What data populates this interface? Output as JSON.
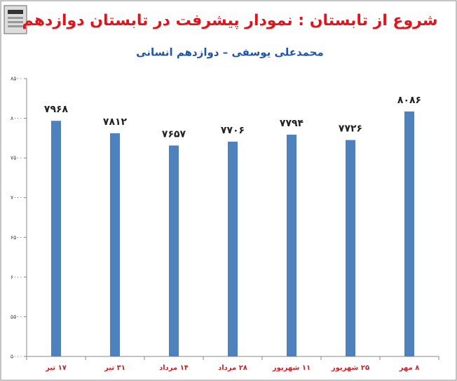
{
  "chart_data": {
    "type": "bar",
    "title": "شروع از تابستان : نمودار پیشرفت در تابستان دوازدهم",
    "subtitle": "محمدعلی یوسفی – دوازدهم انسانی",
    "categories": [
      "۱۷ تیر",
      "۳۱ تیر",
      "۱۴ مرداد",
      "۲۸ مرداد",
      "۱۱ شهریور",
      "۲۵ شهریور",
      "۸ مهر"
    ],
    "values": [
      7968,
      7812,
      7657,
      7706,
      7794,
      7726,
      8086
    ],
    "value_labels": [
      "۷۹۶۸",
      "۷۸۱۲",
      "۷۶۵۷",
      "۷۷۰۶",
      "۷۷۹۴",
      "۷۷۲۶",
      "۸۰۸۶"
    ],
    "color": "#4f81bd",
    "ylim": [
      5000,
      8500
    ],
    "yticks": [
      {
        "value": 5000,
        "label": "۵۰۰۰"
      },
      {
        "value": 5500,
        "label": "۵۵۰۰"
      },
      {
        "value": 6000,
        "label": "۶۰۰۰"
      },
      {
        "value": 6500,
        "label": "۶۵۰۰"
      },
      {
        "value": 7000,
        "label": "۷۰۰۰"
      },
      {
        "value": 7500,
        "label": "۷۵۰۰"
      },
      {
        "value": 8000,
        "label": "۸۰۰۰"
      },
      {
        "value": 8500,
        "label": "۸۵۰۰"
      }
    ]
  }
}
